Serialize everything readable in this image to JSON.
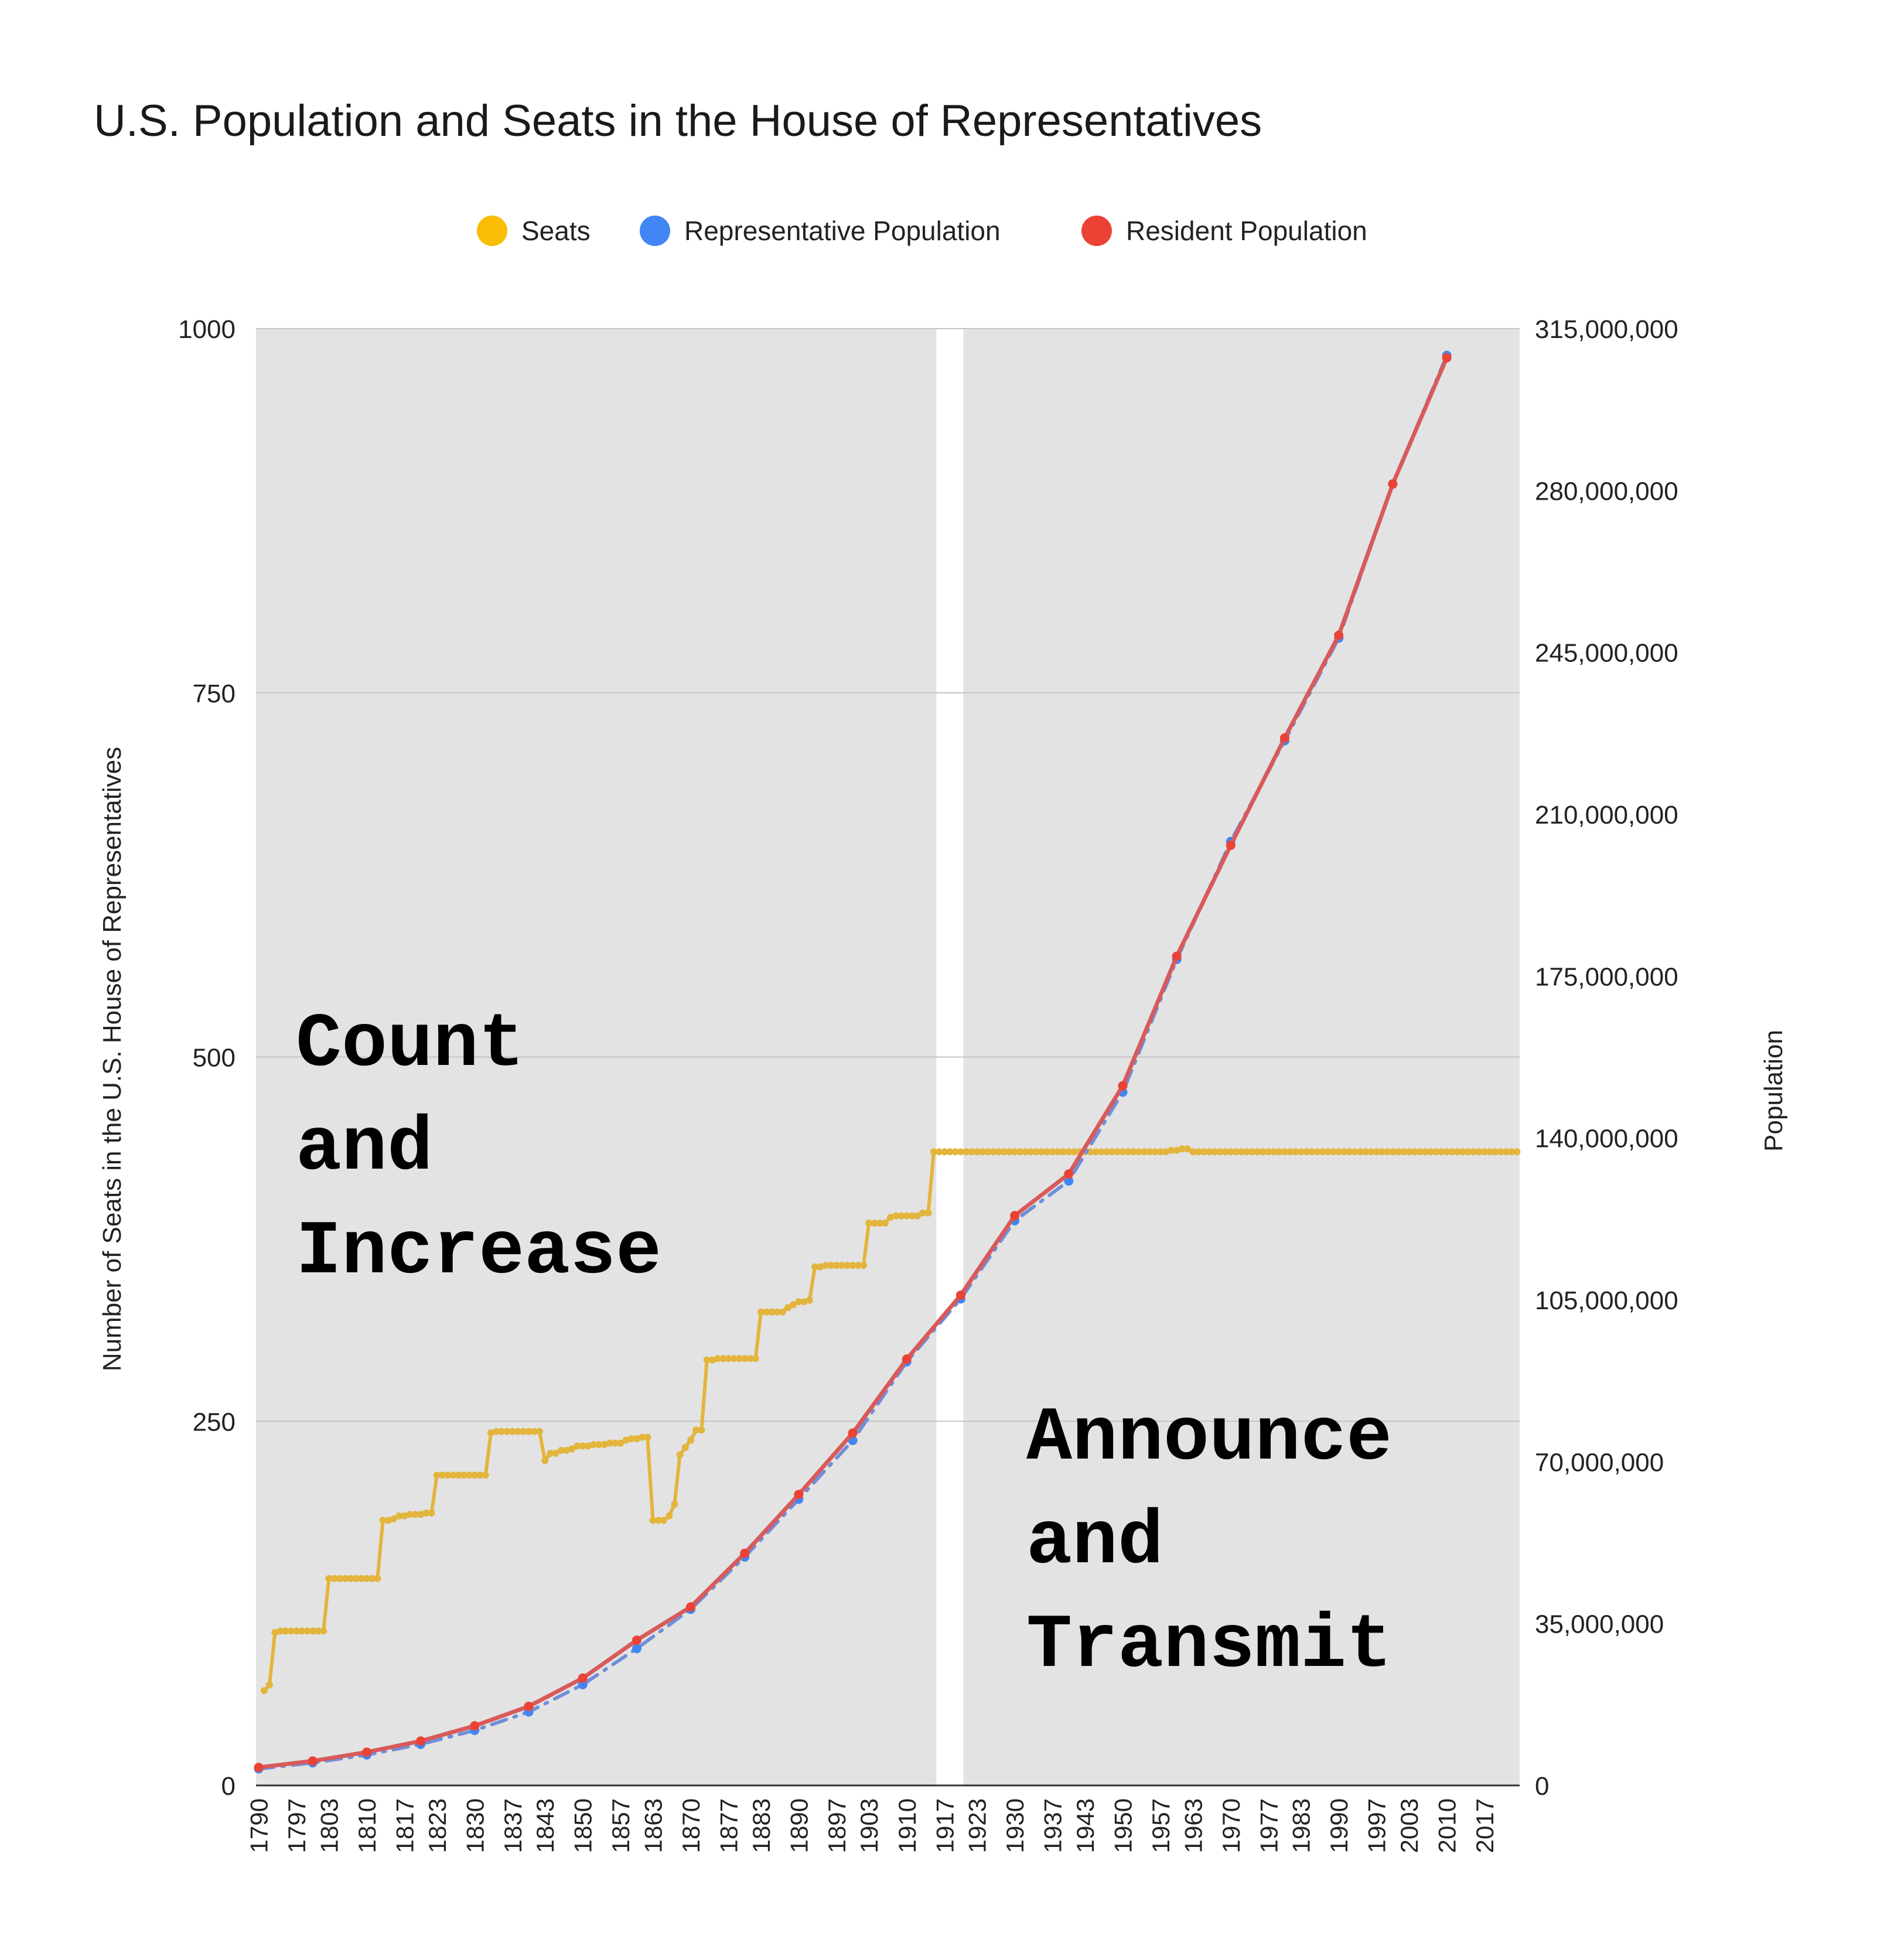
{
  "chart_data": {
    "type": "line",
    "title": "U.S. Population and Seats in the House of Representatives",
    "ylabel_left": "Number of Seats in the U.S. House of Representatives",
    "ylabel_right": "Population",
    "ylim_left": [
      0,
      1000
    ],
    "ylim_right": [
      0,
      315000000
    ],
    "yticks_left": [
      "1000",
      "750",
      "500",
      "250",
      "0"
    ],
    "yticks_right": [
      "315,000,000",
      "280,000,000",
      "245,000,000",
      "210,000,000",
      "175,000,000",
      "140,000,000",
      "105,000,000",
      "70,000,000",
      "35,000,000",
      "0"
    ],
    "xticks": [
      "1790",
      "1797",
      "1803",
      "1810",
      "1817",
      "1823",
      "1830",
      "1837",
      "1843",
      "1850",
      "1857",
      "1863",
      "1870",
      "1877",
      "1883",
      "1890",
      "1897",
      "1903",
      "1910",
      "1917",
      "1923",
      "1930",
      "1937",
      "1943",
      "1950",
      "1957",
      "1963",
      "1970",
      "1977",
      "1983",
      "1990",
      "1997",
      "2003",
      "2010",
      "2017"
    ],
    "grid": true,
    "legend_position": "top",
    "colors": {
      "seats": "#e3b53c",
      "seats_marker": "#fbbc04",
      "representative": "#6f8fd8",
      "representative_marker": "#4285f4",
      "resident": "#d85a5a",
      "resident_marker": "#ea4335",
      "shade": "#e3e3e3",
      "grid": "#c4c4c4"
    },
    "shaded_ranges": [
      [
        1789.5,
        1915.5
      ],
      [
        1920.5,
        2023.5
      ]
    ],
    "annotations": [
      {
        "lines": [
          "Count",
          "and",
          "Increase"
        ]
      },
      {
        "lines": [
          "Announce",
          "and",
          "Transmit"
        ]
      }
    ],
    "series": [
      {
        "name": "Seats",
        "axis": "left",
        "points": [
          [
            1791,
            65
          ],
          [
            1792,
            69
          ],
          [
            1793,
            105
          ],
          [
            1794,
            106
          ],
          [
            1795,
            106
          ],
          [
            1796,
            106
          ],
          [
            1797,
            106
          ],
          [
            1798,
            106
          ],
          [
            1799,
            106
          ],
          [
            1800,
            106
          ],
          [
            1801,
            106
          ],
          [
            1802,
            106
          ],
          [
            1803,
            142
          ],
          [
            1804,
            142
          ],
          [
            1805,
            142
          ],
          [
            1806,
            142
          ],
          [
            1807,
            142
          ],
          [
            1808,
            142
          ],
          [
            1809,
            142
          ],
          [
            1810,
            142
          ],
          [
            1811,
            142
          ],
          [
            1812,
            142
          ],
          [
            1813,
            182
          ],
          [
            1814,
            182
          ],
          [
            1815,
            183
          ],
          [
            1816,
            185
          ],
          [
            1817,
            185
          ],
          [
            1818,
            186
          ],
          [
            1819,
            186
          ],
          [
            1820,
            186
          ],
          [
            1821,
            187
          ],
          [
            1822,
            187
          ],
          [
            1823,
            213
          ],
          [
            1824,
            213
          ],
          [
            1825,
            213
          ],
          [
            1826,
            213
          ],
          [
            1827,
            213
          ],
          [
            1828,
            213
          ],
          [
            1829,
            213
          ],
          [
            1830,
            213
          ],
          [
            1831,
            213
          ],
          [
            1832,
            213
          ],
          [
            1833,
            242
          ],
          [
            1834,
            243
          ],
          [
            1835,
            243
          ],
          [
            1836,
            243
          ],
          [
            1837,
            243
          ],
          [
            1838,
            243
          ],
          [
            1839,
            243
          ],
          [
            1840,
            243
          ],
          [
            1841,
            243
          ],
          [
            1842,
            243
          ],
          [
            1843,
            223
          ],
          [
            1844,
            228
          ],
          [
            1845,
            228
          ],
          [
            1846,
            230
          ],
          [
            1847,
            230
          ],
          [
            1848,
            231
          ],
          [
            1849,
            233
          ],
          [
            1850,
            233
          ],
          [
            1851,
            233
          ],
          [
            1852,
            234
          ],
          [
            1853,
            234
          ],
          [
            1854,
            234
          ],
          [
            1855,
            235
          ],
          [
            1856,
            235
          ],
          [
            1857,
            235
          ],
          [
            1858,
            237
          ],
          [
            1859,
            238
          ],
          [
            1860,
            238
          ],
          [
            1861,
            239
          ],
          [
            1862,
            239
          ],
          [
            1863,
            182
          ],
          [
            1864,
            182
          ],
          [
            1865,
            182
          ],
          [
            1866,
            185
          ],
          [
            1867,
            193
          ],
          [
            1868,
            227
          ],
          [
            1869,
            232
          ],
          [
            1870,
            237
          ],
          [
            1871,
            244
          ],
          [
            1872,
            244
          ],
          [
            1873,
            292
          ],
          [
            1874,
            292
          ],
          [
            1875,
            293
          ],
          [
            1876,
            293
          ],
          [
            1877,
            293
          ],
          [
            1878,
            293
          ],
          [
            1879,
            293
          ],
          [
            1880,
            293
          ],
          [
            1881,
            293
          ],
          [
            1882,
            293
          ],
          [
            1883,
            325
          ],
          [
            1884,
            325
          ],
          [
            1885,
            325
          ],
          [
            1886,
            325
          ],
          [
            1887,
            325
          ],
          [
            1888,
            328
          ],
          [
            1889,
            330
          ],
          [
            1890,
            332
          ],
          [
            1891,
            332
          ],
          [
            1892,
            333
          ],
          [
            1893,
            356
          ],
          [
            1894,
            356
          ],
          [
            1895,
            357
          ],
          [
            1896,
            357
          ],
          [
            1897,
            357
          ],
          [
            1898,
            357
          ],
          [
            1899,
            357
          ],
          [
            1900,
            357
          ],
          [
            1901,
            357
          ],
          [
            1902,
            357
          ],
          [
            1903,
            386
          ],
          [
            1904,
            386
          ],
          [
            1905,
            386
          ],
          [
            1906,
            386
          ],
          [
            1907,
            390
          ],
          [
            1908,
            391
          ],
          [
            1909,
            391
          ],
          [
            1910,
            391
          ],
          [
            1911,
            391
          ],
          [
            1912,
            391
          ],
          [
            1913,
            393
          ],
          [
            1914,
            393
          ],
          [
            1915,
            435
          ],
          [
            1916,
            435
          ],
          [
            1917,
            435
          ],
          [
            1918,
            435
          ],
          [
            1919,
            435
          ],
          [
            1920,
            435
          ],
          [
            1921,
            435
          ],
          [
            1922,
            435
          ],
          [
            1923,
            435
          ],
          [
            1924,
            435
          ],
          [
            1925,
            435
          ],
          [
            1926,
            435
          ],
          [
            1927,
            435
          ],
          [
            1928,
            435
          ],
          [
            1929,
            435
          ],
          [
            1930,
            435
          ],
          [
            1931,
            435
          ],
          [
            1932,
            435
          ],
          [
            1933,
            435
          ],
          [
            1934,
            435
          ],
          [
            1935,
            435
          ],
          [
            1936,
            435
          ],
          [
            1937,
            435
          ],
          [
            1938,
            435
          ],
          [
            1939,
            435
          ],
          [
            1940,
            435
          ],
          [
            1941,
            435
          ],
          [
            1942,
            435
          ],
          [
            1943,
            435
          ],
          [
            1944,
            435
          ],
          [
            1945,
            435
          ],
          [
            1946,
            435
          ],
          [
            1947,
            435
          ],
          [
            1948,
            435
          ],
          [
            1949,
            435
          ],
          [
            1950,
            435
          ],
          [
            1951,
            435
          ],
          [
            1952,
            435
          ],
          [
            1953,
            435
          ],
          [
            1954,
            435
          ],
          [
            1955,
            435
          ],
          [
            1956,
            435
          ],
          [
            1957,
            435
          ],
          [
            1958,
            435
          ],
          [
            1959,
            436
          ],
          [
            1960,
            436
          ],
          [
            1961,
            437
          ],
          [
            1962,
            437
          ],
          [
            1963,
            435
          ],
          [
            1964,
            435
          ],
          [
            1965,
            435
          ],
          [
            1966,
            435
          ],
          [
            1967,
            435
          ],
          [
            1968,
            435
          ],
          [
            1969,
            435
          ],
          [
            1970,
            435
          ],
          [
            1971,
            435
          ],
          [
            1972,
            435
          ],
          [
            1973,
            435
          ],
          [
            1974,
            435
          ],
          [
            1975,
            435
          ],
          [
            1976,
            435
          ],
          [
            1977,
            435
          ],
          [
            1978,
            435
          ],
          [
            1979,
            435
          ],
          [
            1980,
            435
          ],
          [
            1981,
            435
          ],
          [
            1982,
            435
          ],
          [
            1983,
            435
          ],
          [
            1984,
            435
          ],
          [
            1985,
            435
          ],
          [
            1986,
            435
          ],
          [
            1987,
            435
          ],
          [
            1988,
            435
          ],
          [
            1989,
            435
          ],
          [
            1990,
            435
          ],
          [
            1991,
            435
          ],
          [
            1992,
            435
          ],
          [
            1993,
            435
          ],
          [
            1994,
            435
          ],
          [
            1995,
            435
          ],
          [
            1996,
            435
          ],
          [
            1997,
            435
          ],
          [
            1998,
            435
          ],
          [
            1999,
            435
          ],
          [
            2000,
            435
          ],
          [
            2001,
            435
          ],
          [
            2002,
            435
          ],
          [
            2003,
            435
          ],
          [
            2004,
            435
          ],
          [
            2005,
            435
          ],
          [
            2006,
            435
          ],
          [
            2007,
            435
          ],
          [
            2008,
            435
          ],
          [
            2009,
            435
          ],
          [
            2010,
            435
          ],
          [
            2011,
            435
          ],
          [
            2012,
            435
          ],
          [
            2013,
            435
          ],
          [
            2014,
            435
          ],
          [
            2015,
            435
          ],
          [
            2016,
            435
          ],
          [
            2017,
            435
          ],
          [
            2018,
            435
          ],
          [
            2019,
            435
          ],
          [
            2020,
            435
          ],
          [
            2021,
            435
          ],
          [
            2022,
            435
          ],
          [
            2023,
            435
          ]
        ]
      },
      {
        "name": "Representative Population",
        "axis": "right",
        "dashed": true,
        "points": [
          [
            1790,
            3600000
          ],
          [
            1800,
            4900000
          ],
          [
            1810,
            6600000
          ],
          [
            1820,
            8900000
          ],
          [
            1830,
            11900000
          ],
          [
            1840,
            15900000
          ],
          [
            1850,
            21800000
          ],
          [
            1860,
            29600000
          ],
          [
            1870,
            38100000
          ],
          [
            1880,
            49400000
          ],
          [
            1890,
            61900000
          ],
          [
            1900,
            74600000
          ],
          [
            1910,
            91600000
          ],
          [
            1920,
            105200000
          ],
          [
            1930,
            122100000
          ],
          [
            1940,
            130700000
          ],
          [
            1950,
            149900000
          ],
          [
            1960,
            178600000
          ],
          [
            1970,
            204100000
          ],
          [
            1980,
            225900000
          ],
          [
            1990,
            248100000
          ],
          [
            2000,
            281400000
          ],
          [
            2010,
            309200000
          ]
        ]
      },
      {
        "name": "Resident Population",
        "axis": "right",
        "points": [
          [
            1790,
            3900000
          ],
          [
            1800,
            5300000
          ],
          [
            1810,
            7200000
          ],
          [
            1820,
            9600000
          ],
          [
            1830,
            12900000
          ],
          [
            1840,
            17100000
          ],
          [
            1850,
            23200000
          ],
          [
            1860,
            31400000
          ],
          [
            1870,
            38600000
          ],
          [
            1880,
            50200000
          ],
          [
            1890,
            62900000
          ],
          [
            1900,
            76200000
          ],
          [
            1910,
            92200000
          ],
          [
            1920,
            106000000
          ],
          [
            1930,
            123200000
          ],
          [
            1940,
            132200000
          ],
          [
            1950,
            151300000
          ],
          [
            1960,
            179300000
          ],
          [
            1970,
            203300000
          ],
          [
            1980,
            226500000
          ],
          [
            1990,
            248700000
          ],
          [
            2000,
            281400000
          ],
          [
            2010,
            308700000
          ]
        ]
      }
    ]
  }
}
